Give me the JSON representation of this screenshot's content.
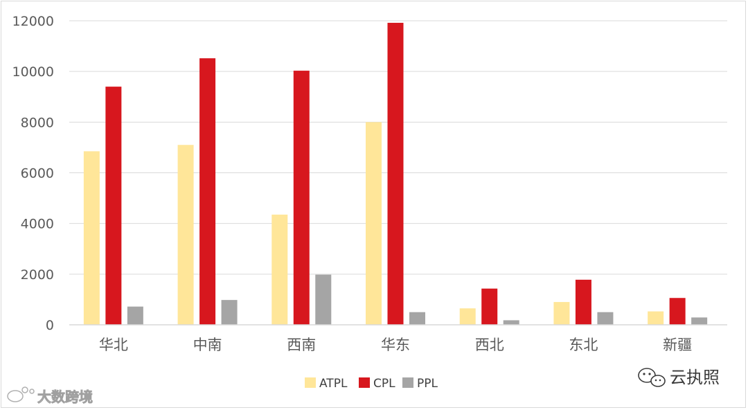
{
  "chart_data": {
    "type": "bar",
    "categories": [
      "华北",
      "中南",
      "西南",
      "华东",
      "西北",
      "东北",
      "新疆"
    ],
    "series": [
      {
        "name": "ATPL",
        "color": "#ffe699",
        "values": [
          6850,
          7100,
          4350,
          8000,
          650,
          900,
          530
        ]
      },
      {
        "name": "CPL",
        "color": "#d7171e",
        "values": [
          9400,
          10520,
          10030,
          11920,
          1430,
          1780,
          1060
        ]
      },
      {
        "name": "PPL",
        "color": "#a5a5a5",
        "values": [
          720,
          980,
          1980,
          500,
          180,
          500,
          290
        ]
      }
    ],
    "yticks": [
      "0",
      "2000",
      "4000",
      "6000",
      "8000",
      "10000",
      "12000"
    ],
    "ylim": [
      0,
      12000
    ],
    "grid": true,
    "legend_position": "bottom"
  },
  "watermarks": {
    "left_text": "大数跨境",
    "right_text": "云执照",
    "left_icon": "weibo-icon",
    "right_icon": "wechat-icon"
  }
}
